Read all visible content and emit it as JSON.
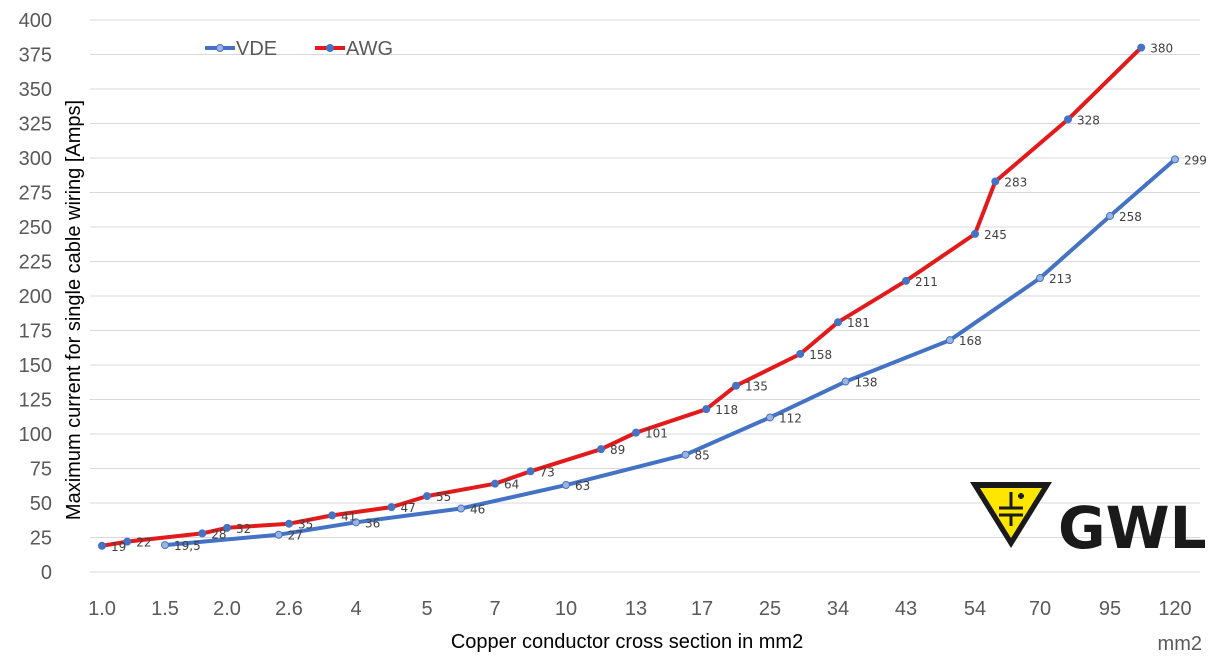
{
  "chart_data": {
    "type": "line",
    "title": "",
    "xlabel": "Copper conductor cross section in mm2",
    "ylabel": "Maximum current for single cable wiring [Amps]",
    "x_unit_label": "mm2",
    "ylim": [
      0,
      400
    ],
    "yticks": [
      "0",
      "25",
      "50",
      "75",
      "100",
      "125",
      "150",
      "175",
      "200",
      "225",
      "250",
      "275",
      "300",
      "325",
      "350",
      "375",
      "400"
    ],
    "xticks": [
      "1.0",
      "1.5",
      "2.0",
      "2.6",
      "4",
      "5",
      "7",
      "10",
      "13",
      "17",
      "25",
      "34",
      "43",
      "54",
      "70",
      "95",
      "120"
    ],
    "grid": "horizontal",
    "legend": "top-left",
    "series": [
      {
        "name": "VDE",
        "color": "#4472C4",
        "points": [
          {
            "x": 1.5,
            "y": 19.5,
            "label": "19,5"
          },
          {
            "x": 2.5,
            "y": 27,
            "label": "27"
          },
          {
            "x": 4,
            "y": 36,
            "label": "36"
          },
          {
            "x": 6,
            "y": 46,
            "label": "46"
          },
          {
            "x": 10,
            "y": 63,
            "label": "63"
          },
          {
            "x": 16,
            "y": 85,
            "label": "85"
          },
          {
            "x": 25,
            "y": 112,
            "label": "112"
          },
          {
            "x": 35,
            "y": 138,
            "label": "138"
          },
          {
            "x": 50,
            "y": 168,
            "label": "168"
          },
          {
            "x": 70,
            "y": 213,
            "label": "213"
          },
          {
            "x": 95,
            "y": 258,
            "label": "258"
          },
          {
            "x": 120,
            "y": 299,
            "label": "299"
          }
        ]
      },
      {
        "name": "AWG",
        "color": "#E31A1C",
        "points": [
          {
            "x": 1.0,
            "y": 19,
            "label": "19"
          },
          {
            "x": 1.2,
            "y": 22,
            "label": "22"
          },
          {
            "x": 1.8,
            "y": 28,
            "label": "28"
          },
          {
            "x": 2.0,
            "y": 32,
            "label": "32"
          },
          {
            "x": 2.6,
            "y": 35,
            "label": "35"
          },
          {
            "x": 3.5,
            "y": 41,
            "label": "41"
          },
          {
            "x": 4.5,
            "y": 47,
            "label": "47"
          },
          {
            "x": 5.0,
            "y": 55,
            "label": "55"
          },
          {
            "x": 7.0,
            "y": 64,
            "label": "64"
          },
          {
            "x": 8.5,
            "y": 73,
            "label": "73"
          },
          {
            "x": 11.5,
            "y": 89,
            "label": "89"
          },
          {
            "x": 13.0,
            "y": 101,
            "label": "101"
          },
          {
            "x": 17.5,
            "y": 118,
            "label": "118"
          },
          {
            "x": 21.0,
            "y": 135,
            "label": "135"
          },
          {
            "x": 29.0,
            "y": 158,
            "label": "158"
          },
          {
            "x": 34.0,
            "y": 181,
            "label": "181"
          },
          {
            "x": 43.0,
            "y": 211,
            "label": "211"
          },
          {
            "x": 54.0,
            "y": 245,
            "label": "245"
          },
          {
            "x": 59.0,
            "y": 283,
            "label": "283"
          },
          {
            "x": 80.0,
            "y": 328,
            "label": "328"
          },
          {
            "x": 107.0,
            "y": 380,
            "label": "380"
          }
        ]
      }
    ]
  },
  "logo": {
    "text": "GWL",
    "colors": {
      "badge": "#FFE600",
      "ink": "#1a1a1a"
    }
  }
}
